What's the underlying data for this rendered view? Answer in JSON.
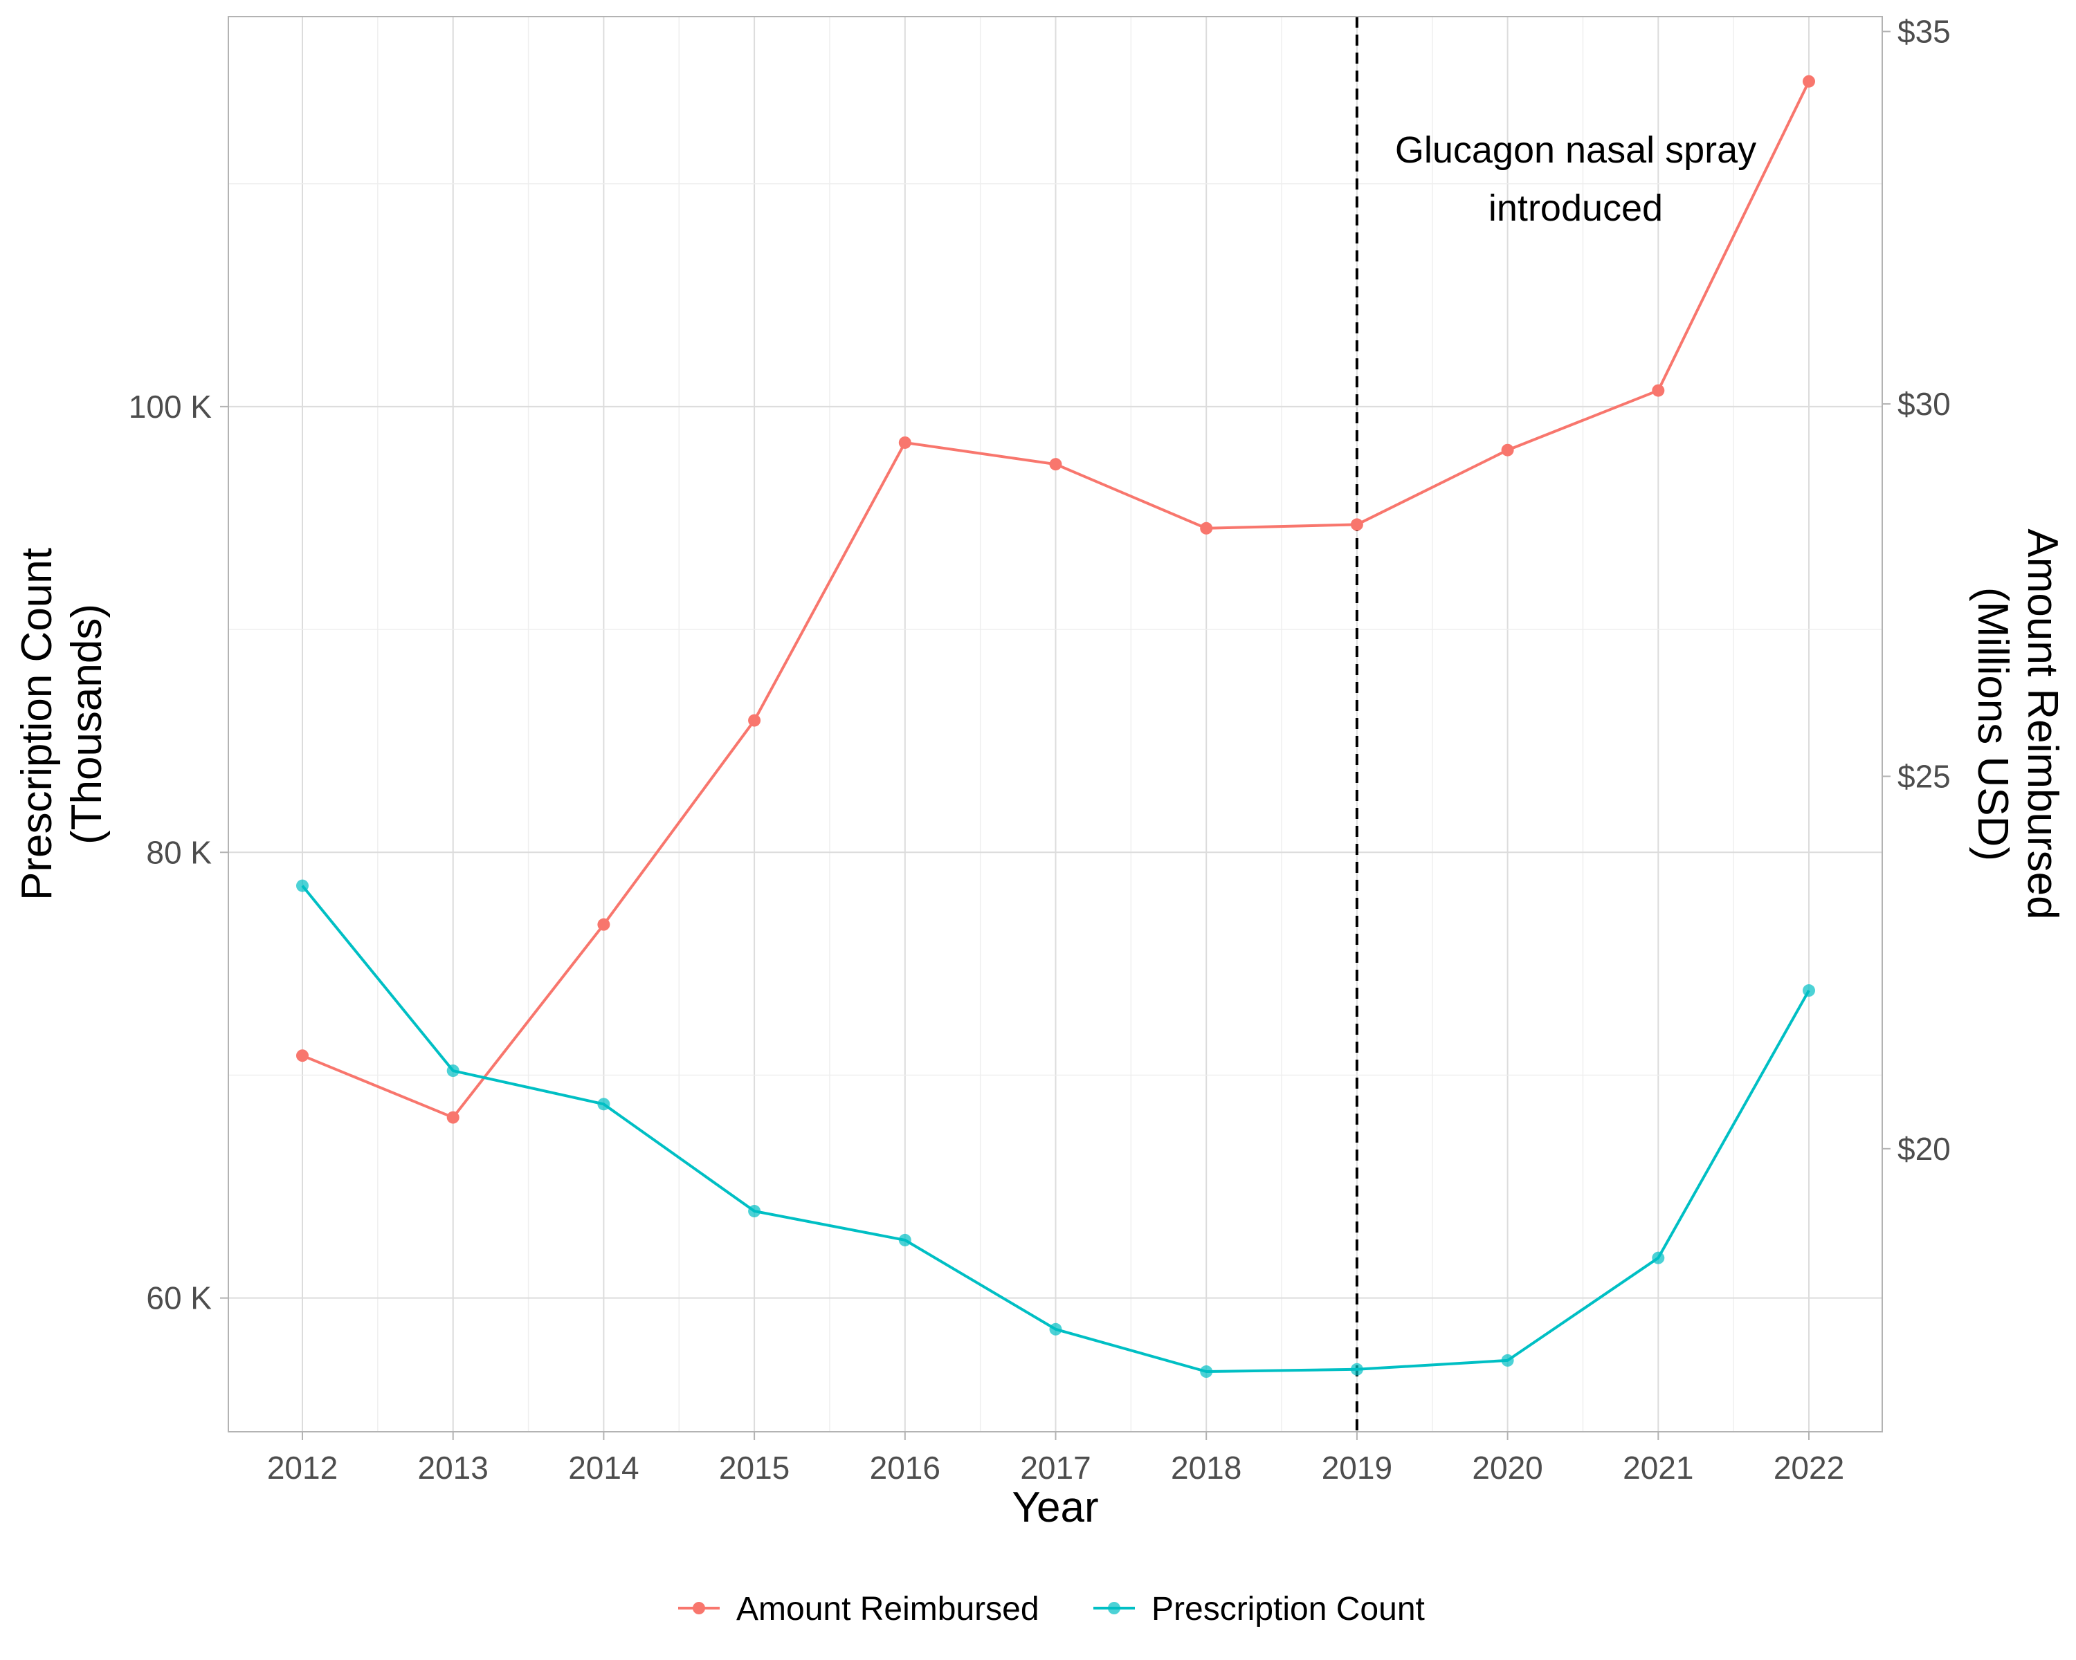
{
  "chart_data": {
    "type": "line",
    "title": "",
    "xlabel": "Year",
    "ylabel_left": [
      "Prescription Count",
      "(Thousands)"
    ],
    "ylabel_right": [
      "Amount Reimbursed",
      "(Millions USD)"
    ],
    "x": [
      2012,
      2013,
      2014,
      2015,
      2016,
      2017,
      2018,
      2019,
      2020,
      2021,
      2022
    ],
    "x_tick_labels": [
      "2012",
      "2013",
      "2014",
      "2015",
      "2016",
      "2017",
      "2018",
      "2019",
      "2020",
      "2021",
      "2022"
    ],
    "y_left_ticks": [
      60000,
      80000,
      100000
    ],
    "y_left_tick_labels": [
      "60 K",
      "80 K",
      "100 K"
    ],
    "y_left_range": [
      54000,
      117500
    ],
    "y_right_ticks": [
      20,
      25,
      30,
      35
    ],
    "y_right_tick_labels": [
      "$20",
      "$25",
      "$30",
      "$35"
    ],
    "y_right_range": [
      16.2,
      35.2
    ],
    "grid": true,
    "legend_position": "bottom",
    "series": [
      {
        "name": "Amount Reimbursed",
        "axis": "right",
        "color": "#F8766D",
        "values": [
          21.25,
          20.42,
          23.01,
          25.75,
          29.48,
          29.19,
          28.33,
          28.38,
          29.38,
          30.18,
          34.33
        ]
      },
      {
        "name": "Prescription Count",
        "axis": "left",
        "color": "#00BFC4",
        "values": [
          78500,
          70200,
          68700,
          63900,
          62600,
          58600,
          56700,
          56800,
          57200,
          61800,
          73800
        ]
      }
    ],
    "annotation": {
      "x": 2019,
      "lines": [
        "Glucagon nasal spray",
        "introduced"
      ]
    }
  }
}
